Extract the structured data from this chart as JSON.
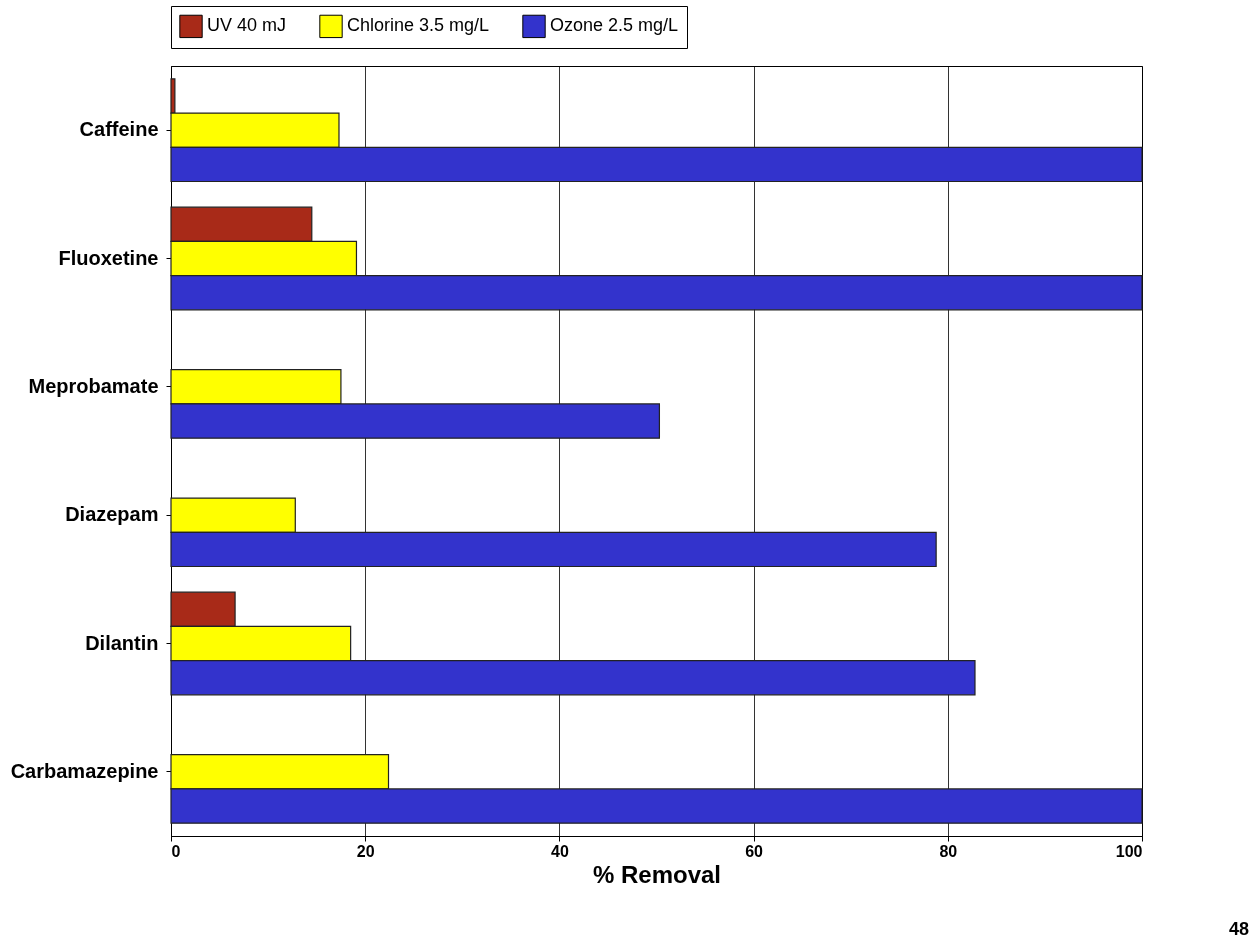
{
  "chart_data": {
    "type": "bar",
    "orientation": "horizontal",
    "xlabel": "% Removal",
    "categories": [
      "Caffeine",
      "Fluoxetine",
      "Meprobamate",
      "Diazepam",
      "Dilantin",
      "Carbamazepine"
    ],
    "series": [
      {
        "name": "UV 40 mJ",
        "color": "#a82a18",
        "values": [
          0.4,
          14.5,
          null,
          null,
          6.6,
          null
        ]
      },
      {
        "name": "Chlorine 3.5 mg/L",
        "color": "#ffff00",
        "values": [
          17.3,
          19.1,
          17.5,
          12.8,
          18.5,
          22.4
        ]
      },
      {
        "name": "Ozone 2.5 mg/L",
        "color": "#3333cc",
        "values": [
          100,
          100,
          50.3,
          78.8,
          82.8,
          100
        ]
      }
    ],
    "xlim": [
      0,
      100
    ],
    "xticks": [
      0,
      20,
      40,
      60,
      80,
      100
    ],
    "grid": "x",
    "legend": "top",
    "annotations": [
      "48"
    ]
  }
}
